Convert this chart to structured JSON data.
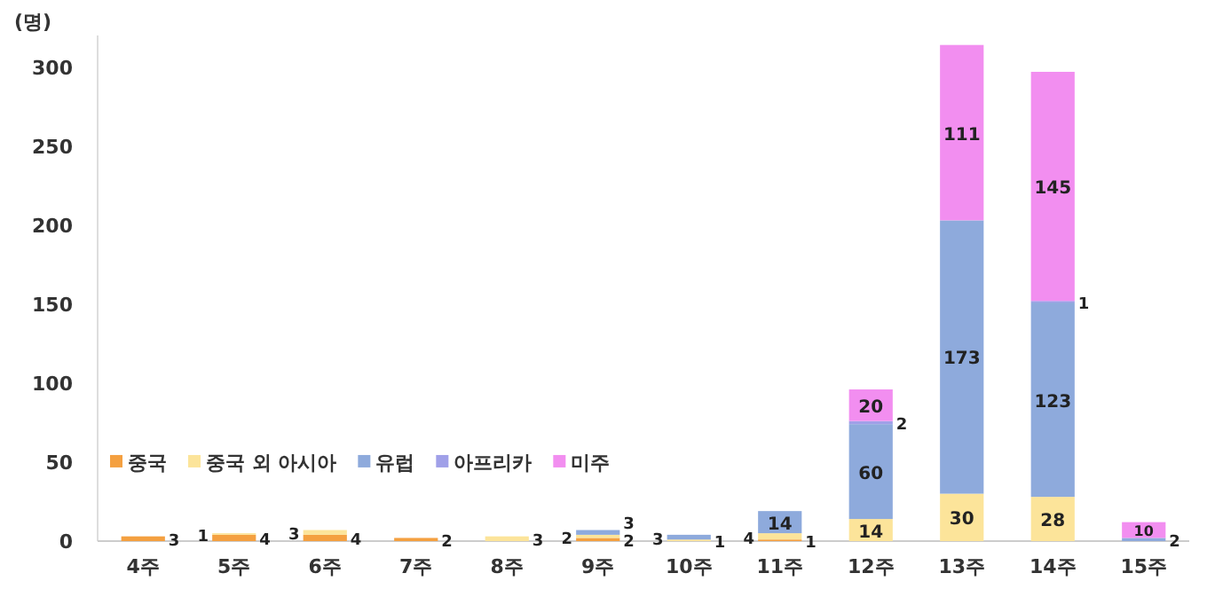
{
  "chart_data": {
    "type": "bar",
    "stacked": true,
    "ylabel": "(명)",
    "categories": [
      "4주",
      "5주",
      "6주",
      "7주",
      "8주",
      "9주",
      "10주",
      "11주",
      "12주",
      "13주",
      "14주",
      "15주"
    ],
    "series": [
      {
        "name": "중국",
        "color": "#f4a040",
        "values": [
          3,
          4,
          4,
          2,
          null,
          2,
          null,
          1,
          null,
          null,
          null,
          null
        ]
      },
      {
        "name": "중국 외 아시아",
        "color": "#fce49a",
        "values": [
          null,
          1,
          3,
          null,
          3,
          2,
          1,
          4,
          14,
          30,
          28,
          null
        ]
      },
      {
        "name": "유럽",
        "color": "#8eaadc",
        "values": [
          null,
          null,
          null,
          null,
          null,
          3,
          3,
          14,
          60,
          173,
          123,
          2
        ]
      },
      {
        "name": "아프리카",
        "color": "#a0a0e8",
        "values": [
          null,
          null,
          null,
          null,
          null,
          null,
          null,
          null,
          2,
          null,
          1,
          null
        ]
      },
      {
        "name": "미주",
        "color": "#f28ef0",
        "values": [
          null,
          null,
          null,
          null,
          null,
          null,
          null,
          null,
          20,
          111,
          145,
          10
        ]
      }
    ],
    "ylim": [
      0,
      320
    ],
    "yticks": [
      0,
      50,
      100,
      150,
      200,
      250,
      300
    ],
    "data_labels": true,
    "legend": "left",
    "grid": false
  }
}
